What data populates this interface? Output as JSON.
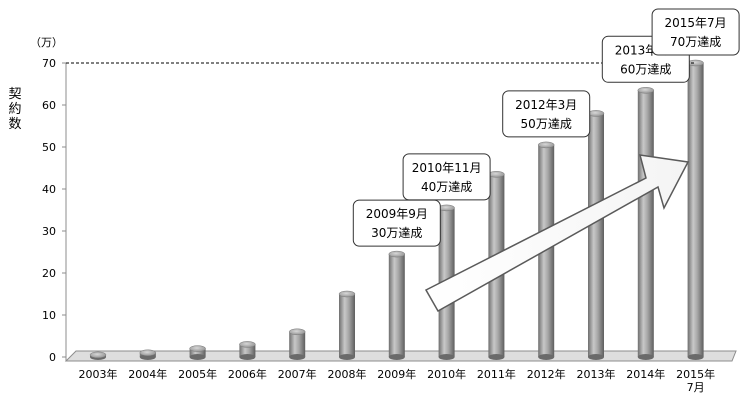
{
  "chart_data": {
    "type": "bar",
    "title": "",
    "unit_label": "（万）",
    "ylabel": "契約数",
    "xlabel": "",
    "ylim": [
      0,
      70
    ],
    "yticks": [
      0,
      10,
      20,
      30,
      40,
      50,
      60,
      70
    ],
    "categories": [
      "2003年",
      "2004年",
      "2005年",
      "2006年",
      "2007年",
      "2008年",
      "2009年",
      "2010年",
      "2011年",
      "2012年",
      "2013年",
      "2014年",
      "2015年\n7月"
    ],
    "values": [
      0.5,
      1,
      2,
      3,
      6,
      15,
      24.5,
      35.5,
      43.5,
      50.5,
      58,
      63.5,
      70
    ],
    "reference_line": {
      "value": 70,
      "style": "dashed"
    },
    "callouts": [
      {
        "category_index": 6,
        "lines": [
          "2009年9月",
          "30万達成"
        ]
      },
      {
        "category_index": 7,
        "lines": [
          "2010年11月",
          "40万達成"
        ]
      },
      {
        "category_index": 9,
        "lines": [
          "2012年3月",
          "50万達成"
        ]
      },
      {
        "category_index": 11,
        "lines": [
          "2013年8月",
          "60万達成"
        ]
      },
      {
        "category_index": 12,
        "lines": [
          "2015年7月",
          "70万達成"
        ]
      }
    ],
    "trend_arrow": true,
    "colors": {
      "bar": "#9a9a9a",
      "axis": "#808080",
      "floor": "#d9d9d9",
      "dashed_line": "#000000"
    }
  }
}
